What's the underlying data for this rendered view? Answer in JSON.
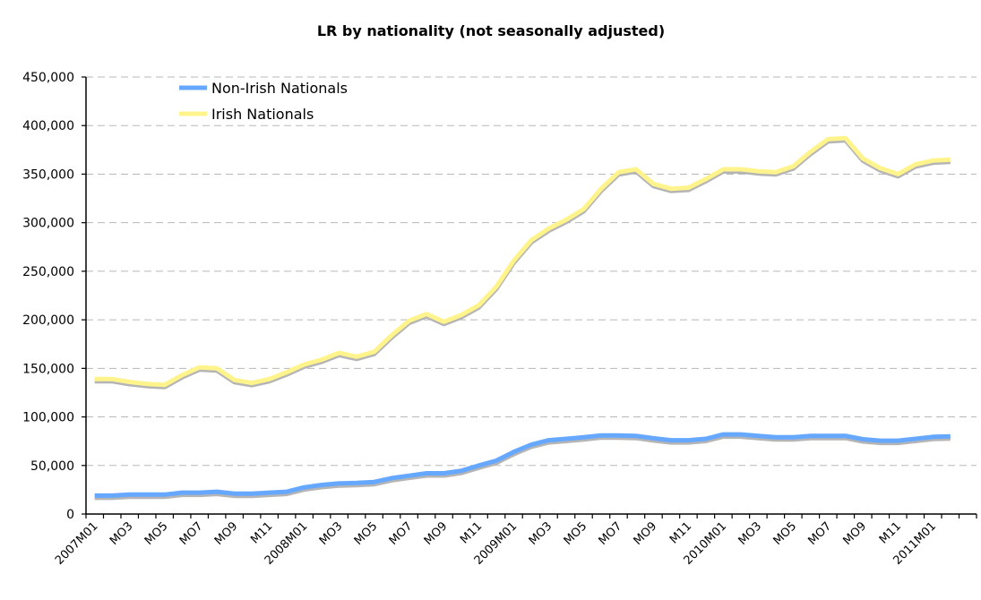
{
  "chart_data": {
    "type": "line",
    "title": "LR by nationality (not seasonally adjusted)",
    "xlabel": "",
    "ylabel": "",
    "ylim": [
      0,
      450000
    ],
    "y_ticks": [
      0,
      50000,
      100000,
      150000,
      200000,
      250000,
      300000,
      350000,
      400000,
      450000
    ],
    "y_tick_labels": [
      "0",
      "50,000",
      "100,000",
      "150,000",
      "200,000",
      "250,000",
      "300,000",
      "350,000",
      "400,000",
      "450,000"
    ],
    "grid": true,
    "legend_position": "top-left",
    "x": [
      "2007M01",
      "M02",
      "M03",
      "M04",
      "M05",
      "M06",
      "M07",
      "M08",
      "M09",
      "M10",
      "M11",
      "M12",
      "2008M01",
      "M02",
      "M03",
      "M04",
      "M05",
      "M06",
      "M07",
      "M08",
      "M09",
      "M10",
      "M11",
      "M12",
      "2009M01",
      "M02",
      "M03",
      "M04",
      "M05",
      "M06",
      "M07",
      "M08",
      "M09",
      "M10",
      "M11",
      "M12",
      "2010M01",
      "M02",
      "M03",
      "M04",
      "M05",
      "M06",
      "M07",
      "M08",
      "M09",
      "M10",
      "M11",
      "M12",
      "2011M01",
      "M02"
    ],
    "x_tick_labels": [
      {
        "index": 0,
        "label": "2007M01"
      },
      {
        "index": 2,
        "label": "MO3"
      },
      {
        "index": 4,
        "label": "MO5"
      },
      {
        "index": 6,
        "label": "MO7"
      },
      {
        "index": 8,
        "label": "MO9"
      },
      {
        "index": 10,
        "label": "M11"
      },
      {
        "index": 12,
        "label": "2008M01"
      },
      {
        "index": 14,
        "label": "MO3"
      },
      {
        "index": 16,
        "label": "MO5"
      },
      {
        "index": 18,
        "label": "MO7"
      },
      {
        "index": 20,
        "label": "MO9"
      },
      {
        "index": 22,
        "label": "M11"
      },
      {
        "index": 24,
        "label": "2009M01"
      },
      {
        "index": 26,
        "label": "MO3"
      },
      {
        "index": 28,
        "label": "MO5"
      },
      {
        "index": 30,
        "label": "MO7"
      },
      {
        "index": 32,
        "label": "MO9"
      },
      {
        "index": 34,
        "label": "M11"
      },
      {
        "index": 36,
        "label": "2010M01"
      },
      {
        "index": 38,
        "label": "MO3"
      },
      {
        "index": 40,
        "label": "MO5"
      },
      {
        "index": 42,
        "label": "MO7"
      },
      {
        "index": 44,
        "label": "MO9"
      },
      {
        "index": 46,
        "label": "M11"
      },
      {
        "index": 48,
        "label": "2011M01"
      }
    ],
    "category_slots": 51,
    "series": [
      {
        "name": "Non-Irish Nationals",
        "color": "#66a8ff",
        "values": [
          19000,
          19000,
          20000,
          20000,
          20000,
          22000,
          22000,
          23000,
          21000,
          21000,
          22000,
          23000,
          27500,
          30000,
          31500,
          32000,
          33000,
          37000,
          39500,
          42000,
          42000,
          44500,
          50000,
          55000,
          64000,
          71500,
          76000,
          77500,
          79000,
          81000,
          81000,
          80500,
          78000,
          76000,
          76000,
          77500,
          82000,
          82000,
          80500,
          79000,
          79000,
          80500,
          80500,
          80500,
          77000,
          75500,
          75500,
          77500,
          79500,
          80000
        ]
      },
      {
        "name": "Irish Nationals",
        "color": "#fff48c",
        "values": [
          139000,
          139000,
          136000,
          134000,
          133000,
          143000,
          151000,
          150000,
          138000,
          135000,
          139000,
          146000,
          154000,
          159000,
          166000,
          162000,
          167000,
          184000,
          199000,
          206000,
          198000,
          205000,
          215000,
          234000,
          261000,
          282000,
          294000,
          303000,
          314000,
          335000,
          352000,
          355000,
          340000,
          335000,
          336000,
          345000,
          355000,
          355000,
          353000,
          352000,
          358000,
          373000,
          386000,
          387000,
          366000,
          356000,
          350000,
          360000,
          364000,
          365000
        ]
      }
    ],
    "shadow_color": "#b5b5b5"
  }
}
